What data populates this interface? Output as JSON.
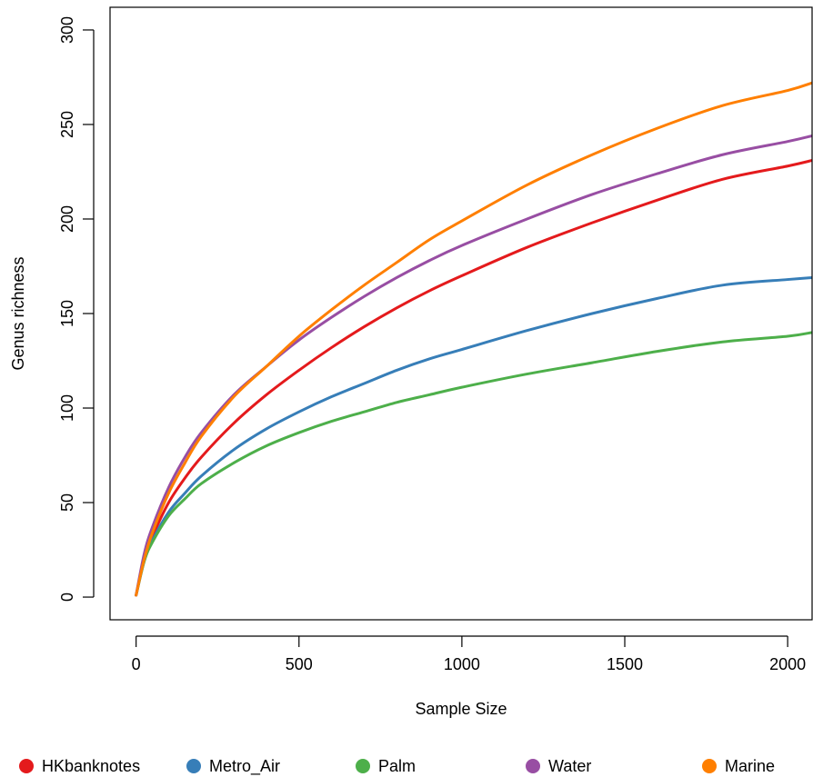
{
  "chart_data": {
    "type": "line",
    "title": "",
    "xlabel": "Sample Size",
    "ylabel": "Genus richness",
    "xlim": [
      -80,
      2075
    ],
    "ylim": [
      -12,
      312
    ],
    "xticks": [
      "0",
      "500",
      "1000",
      "1500",
      "2000"
    ],
    "yticks": [
      "0",
      "50",
      "100",
      "150",
      "200",
      "250",
      "300"
    ],
    "grid": false,
    "legend_position": "bottom",
    "x": [
      0,
      25,
      50,
      100,
      150,
      200,
      300,
      400,
      500,
      600,
      700,
      800,
      900,
      1000,
      1200,
      1400,
      1600,
      1800,
      2000,
      2075
    ],
    "series": [
      {
        "name": "HKbanknotes",
        "color": "#E41A1C",
        "values": [
          1,
          20,
          32,
          50,
          63,
          74,
          92,
          107,
          120,
          132,
          143,
          153,
          162,
          170,
          185,
          198,
          210,
          221,
          228,
          231
        ]
      },
      {
        "name": "Metro_Air",
        "color": "#377EB8",
        "values": [
          1,
          19,
          30,
          45,
          55,
          64,
          78,
          89,
          98,
          106,
          113,
          120,
          126,
          131,
          141,
          150,
          158,
          165,
          168,
          169
        ]
      },
      {
        "name": "Palm",
        "color": "#4DAF4A",
        "values": [
          1,
          19,
          29,
          43,
          52,
          60,
          71,
          80,
          87,
          93,
          98,
          103,
          107,
          111,
          118,
          124,
          130,
          135,
          138,
          140
        ]
      },
      {
        "name": "Water",
        "color": "#984EA3",
        "values": [
          1,
          23,
          37,
          58,
          74,
          87,
          107,
          122,
          136,
          148,
          159,
          169,
          178,
          186,
          200,
          213,
          224,
          234,
          241,
          244
        ]
      },
      {
        "name": "Marine",
        "color": "#FF7F00",
        "values": [
          1,
          20,
          34,
          55,
          71,
          85,
          106,
          122,
          138,
          152,
          165,
          177,
          189,
          199,
          218,
          234,
          248,
          260,
          268,
          272
        ]
      }
    ]
  }
}
